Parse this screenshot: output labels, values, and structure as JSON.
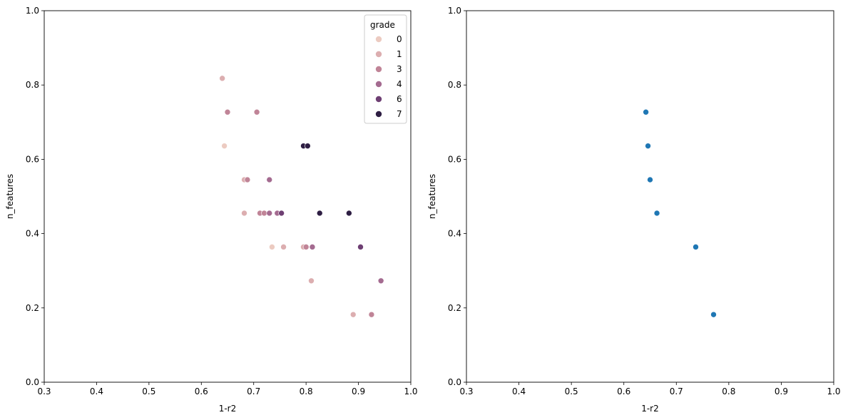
{
  "chart_data": [
    {
      "type": "scatter",
      "xlabel": "1-r2",
      "ylabel": "n_features",
      "xlim": [
        0.3,
        1.0
      ],
      "ylim": [
        0.0,
        1.0
      ],
      "xticks": [
        "0.3",
        "0.4",
        "0.5",
        "0.6",
        "0.7",
        "0.8",
        "0.9",
        "1.0"
      ],
      "yticks": [
        "0.0",
        "0.2",
        "0.4",
        "0.6",
        "0.8",
        "1.0"
      ],
      "grid": false,
      "legend": {
        "title": "grade",
        "placement": "top-right",
        "entries": [
          {
            "label": "0",
            "color": "#eccbc1"
          },
          {
            "label": "1",
            "color": "#dcaeb0"
          },
          {
            "label": "3",
            "color": "#c08497"
          },
          {
            "label": "4",
            "color": "#a46b90"
          },
          {
            "label": "6",
            "color": "#6e3f73"
          },
          {
            "label": "7",
            "color": "#2e1e43"
          }
        ]
      },
      "points": [
        {
          "x": 0.64,
          "y": 0.818,
          "grade": 1
        },
        {
          "x": 0.644,
          "y": 0.636,
          "grade": 0
        },
        {
          "x": 0.65,
          "y": 0.727,
          "grade": 3
        },
        {
          "x": 0.706,
          "y": 0.727,
          "grade": 3
        },
        {
          "x": 0.682,
          "y": 0.545,
          "grade": 1
        },
        {
          "x": 0.688,
          "y": 0.545,
          "grade": 3
        },
        {
          "x": 0.73,
          "y": 0.545,
          "grade": 4
        },
        {
          "x": 0.682,
          "y": 0.455,
          "grade": 1
        },
        {
          "x": 0.712,
          "y": 0.455,
          "grade": 3
        },
        {
          "x": 0.72,
          "y": 0.455,
          "grade": 3
        },
        {
          "x": 0.73,
          "y": 0.455,
          "grade": 4
        },
        {
          "x": 0.745,
          "y": 0.455,
          "grade": 4
        },
        {
          "x": 0.753,
          "y": 0.455,
          "grade": 6
        },
        {
          "x": 0.826,
          "y": 0.455,
          "grade": 7
        },
        {
          "x": 0.882,
          "y": 0.455,
          "grade": 7
        },
        {
          "x": 0.795,
          "y": 0.636,
          "grade": 7
        },
        {
          "x": 0.803,
          "y": 0.636,
          "grade": 7
        },
        {
          "x": 0.735,
          "y": 0.364,
          "grade": 0
        },
        {
          "x": 0.757,
          "y": 0.364,
          "grade": 1
        },
        {
          "x": 0.795,
          "y": 0.364,
          "grade": 1
        },
        {
          "x": 0.8,
          "y": 0.364,
          "grade": 3
        },
        {
          "x": 0.812,
          "y": 0.364,
          "grade": 4
        },
        {
          "x": 0.904,
          "y": 0.364,
          "grade": 6
        },
        {
          "x": 0.81,
          "y": 0.273,
          "grade": 1
        },
        {
          "x": 0.943,
          "y": 0.273,
          "grade": 4
        },
        {
          "x": 0.89,
          "y": 0.182,
          "grade": 1
        },
        {
          "x": 0.925,
          "y": 0.182,
          "grade": 3
        }
      ]
    },
    {
      "type": "scatter",
      "xlabel": "1-r2",
      "ylabel": "n_features",
      "xlim": [
        0.3,
        1.0
      ],
      "ylim": [
        0.0,
        1.0
      ],
      "xticks": [
        "0.3",
        "0.4",
        "0.5",
        "0.6",
        "0.7",
        "0.8",
        "0.9",
        "1.0"
      ],
      "yticks": [
        "0.0",
        "0.2",
        "0.4",
        "0.6",
        "0.8",
        "1.0"
      ],
      "grid": false,
      "color": "#1f77b4",
      "points": [
        {
          "x": 0.642,
          "y": 0.727
        },
        {
          "x": 0.646,
          "y": 0.636
        },
        {
          "x": 0.65,
          "y": 0.545
        },
        {
          "x": 0.663,
          "y": 0.455
        },
        {
          "x": 0.737,
          "y": 0.364
        },
        {
          "x": 0.771,
          "y": 0.182
        }
      ]
    }
  ]
}
